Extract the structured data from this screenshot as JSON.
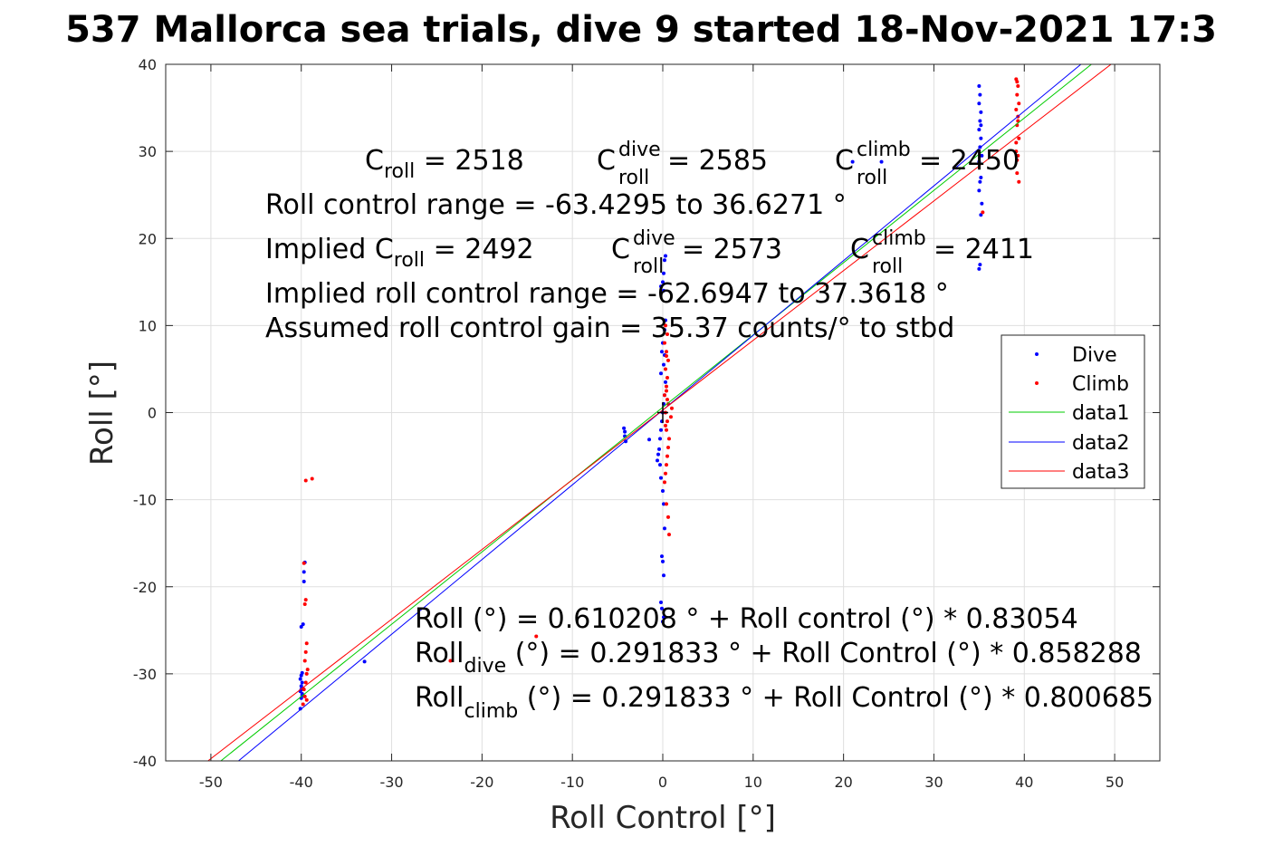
{
  "chart_data": {
    "type": "scatter",
    "title": "537 Mallorca sea trials, dive 9 started 18-Nov-2021 17:3",
    "xlabel": "Roll Control [°]",
    "ylabel": "Roll [°]",
    "xlim": [
      -55,
      55
    ],
    "ylim": [
      -40,
      40
    ],
    "xticks": [
      "-50",
      "-40",
      "-30",
      "-20",
      "-10",
      "0",
      "10",
      "20",
      "30",
      "40",
      "50"
    ],
    "yticks": [
      "-40",
      "-30",
      "-20",
      "-10",
      "0",
      "10",
      "20",
      "30",
      "40"
    ],
    "grid": true,
    "legend": {
      "location": "right",
      "entries": [
        "Dive",
        "Climb",
        "data1",
        "data2",
        "data3"
      ]
    },
    "annotations": {
      "c_roll": {
        "base": "C",
        "sub": "roll",
        "value": " = 2518"
      },
      "c_roll_dive": {
        "base": "C",
        "sup": "dive",
        "sub": "roll",
        "value": " = 2585"
      },
      "c_roll_climb": {
        "base": "C",
        "sup": "climb",
        "sub": "roll",
        "value": " = 2450"
      },
      "range": "Roll control range = -63.4295 to 36.6271 °",
      "implied_prefix": "Implied C",
      "implied_sub": "roll",
      "implied_value": " = 2492",
      "implied_dive": {
        "base": "C",
        "sup": "dive",
        "sub": "roll",
        "value": " = 2573"
      },
      "implied_climb": {
        "base": "C",
        "sup": "climb",
        "sub": "roll",
        "value": " = 2411"
      },
      "implied_range": "Implied roll control range = -62.6947 to 37.3618 °",
      "gain": "Assumed roll control gain = 35.37 counts/° to stbd",
      "fit": "Roll (°) = 0.610208 ° + Roll control (°) * 0.83054",
      "fit_dive_base": "Roll",
      "fit_dive_sub": "dive",
      "fit_dive_rest": " (°) = 0.291833 ° + Roll Control (°) * 0.858288",
      "fit_climb_base": "Roll",
      "fit_climb_sub": "climb",
      "fit_climb_rest": " (°) = 0.291833 ° + Roll Control (°) * 0.800685"
    },
    "series": [
      {
        "name": "Dive",
        "kind": "points",
        "color": "#0000ff",
        "x": [
          -40.1,
          -40.0,
          -39.9,
          -40.1,
          -39.8,
          -40.0,
          -39.9,
          -40.1,
          -40.0,
          -39.9,
          -40.0,
          -39.9,
          -40.0,
          -39.8,
          -39.7,
          -39.7,
          -39.6,
          -33.0,
          -4.3,
          -4.2,
          -4.2,
          -4.1,
          -1.5,
          -0.6,
          -0.5,
          -0.4,
          -0.3,
          -0.2,
          -0.1,
          0.0,
          0.1,
          0.2,
          0.3,
          -0.3,
          -0.2,
          0.0,
          0.1,
          0.2,
          -0.1,
          0.0,
          0.1,
          -0.2,
          -0.1,
          0.1,
          0.0,
          -0.2,
          0.1,
          0.2,
          -0.1,
          0.0,
          0.2,
          0.3,
          0.1,
          -0.2,
          0.0,
          0.1,
          0.2,
          0.3,
          35.0,
          35.1,
          35.0,
          35.2,
          35.1,
          35.0,
          35.2,
          35.1,
          35.3,
          35.0,
          35.2,
          35.1,
          35.0,
          35.3,
          35.2,
          35.1,
          35.0,
          35.2,
          21.0,
          24.2
        ],
        "y": [
          -34.0,
          -32.8,
          -32.3,
          -32.0,
          -31.7,
          -31.4,
          -31.0,
          -30.6,
          -30.2,
          -29.9,
          -31.8,
          -32.5,
          -24.6,
          -24.3,
          -19.4,
          -18.3,
          -17.2,
          -28.6,
          -1.8,
          -2.2,
          -2.7,
          -3.3,
          -3.1,
          -5.5,
          -4.8,
          -4.2,
          -3.0,
          -2.0,
          -1.0,
          0.0,
          1.0,
          2.0,
          3.5,
          -6.0,
          -7.5,
          -9.0,
          -10.5,
          -13.3,
          -16.5,
          -17.1,
          -18.7,
          -21.8,
          -22.5,
          -23.5,
          -24.0,
          4.5,
          5.5,
          6.6,
          7.0,
          8.0,
          9.5,
          10.6,
          14.0,
          14.5,
          15.0,
          16.0,
          17.5,
          18.0,
          37.5,
          36.5,
          35.5,
          34.5,
          33.5,
          32.5,
          31.5,
          30.5,
          29.5,
          28.8,
          27.0,
          26.5,
          25.5,
          24.0,
          22.7,
          17.0,
          16.5,
          33.0,
          28.8,
          28.8
        ]
      },
      {
        "name": "Climb",
        "kind": "points",
        "color": "#ff0000",
        "x": [
          -39.8,
          -39.6,
          -39.7,
          -39.5,
          -39.4,
          -39.3,
          -39.6,
          -39.5,
          -39.4,
          -39.6,
          -39.5,
          -39.7,
          -39.5,
          -38.8,
          -39.4,
          -23.5,
          -14.0,
          0.2,
          0.3,
          0.4,
          0.5,
          0.6,
          0.7,
          0.4,
          0.5,
          0.3,
          0.6,
          0.2,
          0.4,
          0.5,
          0.3,
          0.6,
          0.4,
          0.2,
          0.5,
          0.3,
          0.4,
          0.6,
          0.7,
          1.0,
          0.9,
          0.4,
          0.5,
          0.3,
          0.4,
          39.1,
          39.3,
          39.2,
          39.4,
          39.1,
          39.3,
          39.2,
          39.4,
          39.1,
          39.3,
          39.2,
          39.4,
          39.2,
          39.3,
          39.1,
          39.2,
          35.4
        ],
        "y": [
          -33.5,
          -32.6,
          -31.8,
          -31.0,
          -30.0,
          -29.5,
          -28.5,
          -27.5,
          -26.5,
          -22.0,
          -21.5,
          -17.3,
          -7.8,
          -7.6,
          -33.0,
          -28.5,
          -25.7,
          -8.0,
          -7.0,
          -6.0,
          -5.0,
          -4.0,
          -3.0,
          -2.0,
          -1.0,
          0.0,
          1.0,
          2.0,
          3.0,
          4.0,
          5.0,
          6.0,
          7.0,
          8.0,
          9.0,
          10.0,
          -10.5,
          -12.0,
          -14.0,
          0.5,
          -0.5,
          2.5,
          1.5,
          -1.5,
          6.5,
          38.3,
          37.5,
          36.5,
          35.5,
          34.8,
          34.0,
          33.0,
          31.5,
          30.0,
          29.5,
          27.5,
          26.5,
          38.0,
          33.5,
          31.0,
          29.0,
          23.0
        ]
      },
      {
        "name": "data1",
        "kind": "line",
        "color": "#00cc00",
        "intercept": 0.610208,
        "slope": 0.83054
      },
      {
        "name": "data2",
        "kind": "line",
        "color": "#0000ff",
        "intercept": 0.291833,
        "slope": 0.858288
      },
      {
        "name": "data3",
        "kind": "line",
        "color": "#ff0000",
        "intercept": 0.291833,
        "slope": 0.800685
      }
    ]
  }
}
